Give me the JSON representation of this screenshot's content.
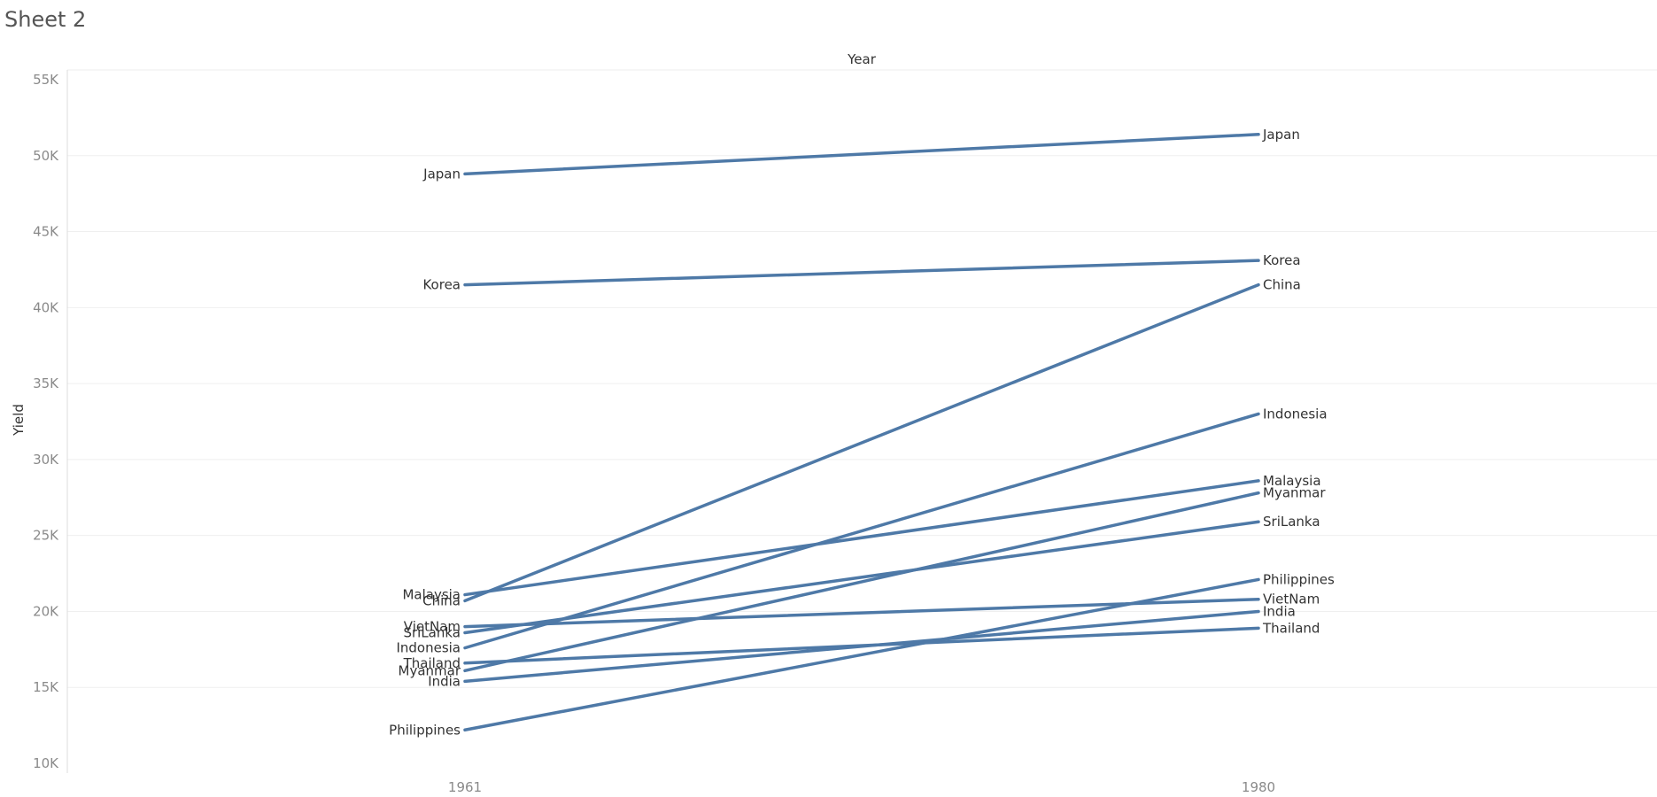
{
  "sheet": {
    "title": "Sheet 2"
  },
  "chart_data": {
    "type": "line",
    "title": "",
    "xlabel": "Year",
    "ylabel": "Yield",
    "x": [
      "1961",
      "1980"
    ],
    "ylim": [
      10000,
      55000
    ],
    "y_ticks": [
      10000,
      15000,
      20000,
      25000,
      30000,
      35000,
      40000,
      45000,
      50000,
      55000
    ],
    "y_tick_labels": [
      "10K",
      "15K",
      "20K",
      "25K",
      "30K",
      "35K",
      "40K",
      "45K",
      "50K",
      "55K"
    ],
    "grid": true,
    "line_color": "#4e79a7",
    "series": [
      {
        "name": "Japan",
        "values": [
          48800,
          51400
        ]
      },
      {
        "name": "Korea",
        "values": [
          41500,
          43100
        ]
      },
      {
        "name": "China",
        "values": [
          20700,
          41500
        ]
      },
      {
        "name": "Indonesia",
        "values": [
          17600,
          33000
        ]
      },
      {
        "name": "Malaysia",
        "values": [
          21100,
          28600
        ]
      },
      {
        "name": "Myanmar",
        "values": [
          16100,
          27800
        ]
      },
      {
        "name": "SriLanka",
        "values": [
          18600,
          25900
        ]
      },
      {
        "name": "Philippines",
        "values": [
          12200,
          22100
        ]
      },
      {
        "name": "VietNam",
        "values": [
          19000,
          20800
        ]
      },
      {
        "name": "India",
        "values": [
          15400,
          20000
        ]
      },
      {
        "name": "Thailand",
        "values": [
          16600,
          18900
        ]
      }
    ]
  }
}
